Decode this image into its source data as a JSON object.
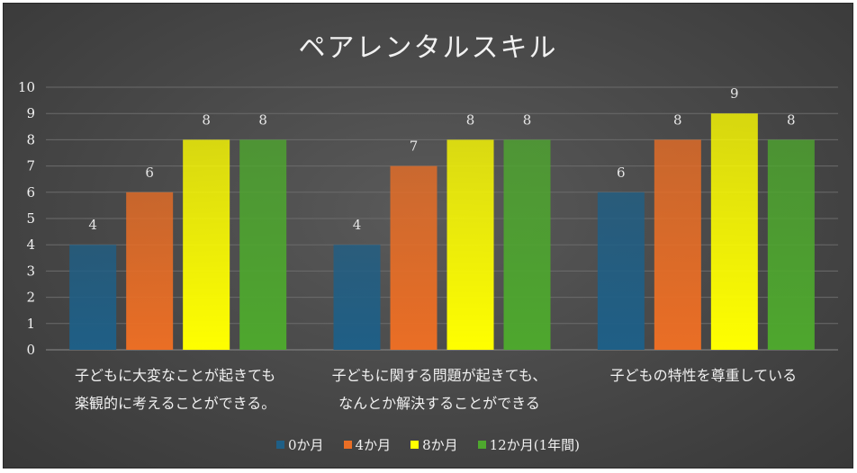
{
  "chart_data": {
    "type": "bar",
    "title": "ペアレンタルスキル",
    "categories": [
      [
        "子どもに大変なことが起きても",
        "楽観的に考えることができる。"
      ],
      [
        "子どもに関する問題が起きても、",
        "なんとか解決することができる"
      ],
      [
        "子どもの特性を尊重している"
      ]
    ],
    "series": [
      {
        "name": "0か月",
        "values": [
          4,
          4,
          6
        ],
        "color": "#1f5f86"
      },
      {
        "name": "4か月",
        "values": [
          6,
          7,
          8
        ],
        "color": "#ea6e25"
      },
      {
        "name": "8か月",
        "values": [
          8,
          8,
          9
        ],
        "color": "#ffff00"
      },
      {
        "name": "12か月(1年間)",
        "values": [
          8,
          8,
          8
        ],
        "color": "#4ea72e"
      }
    ],
    "ylim": [
      0,
      10
    ],
    "yticks": [
      0,
      1,
      2,
      3,
      4,
      5,
      6,
      7,
      8,
      9,
      10
    ],
    "xlabel": "",
    "ylabel": "",
    "grid": true,
    "legend_position": "bottom"
  }
}
